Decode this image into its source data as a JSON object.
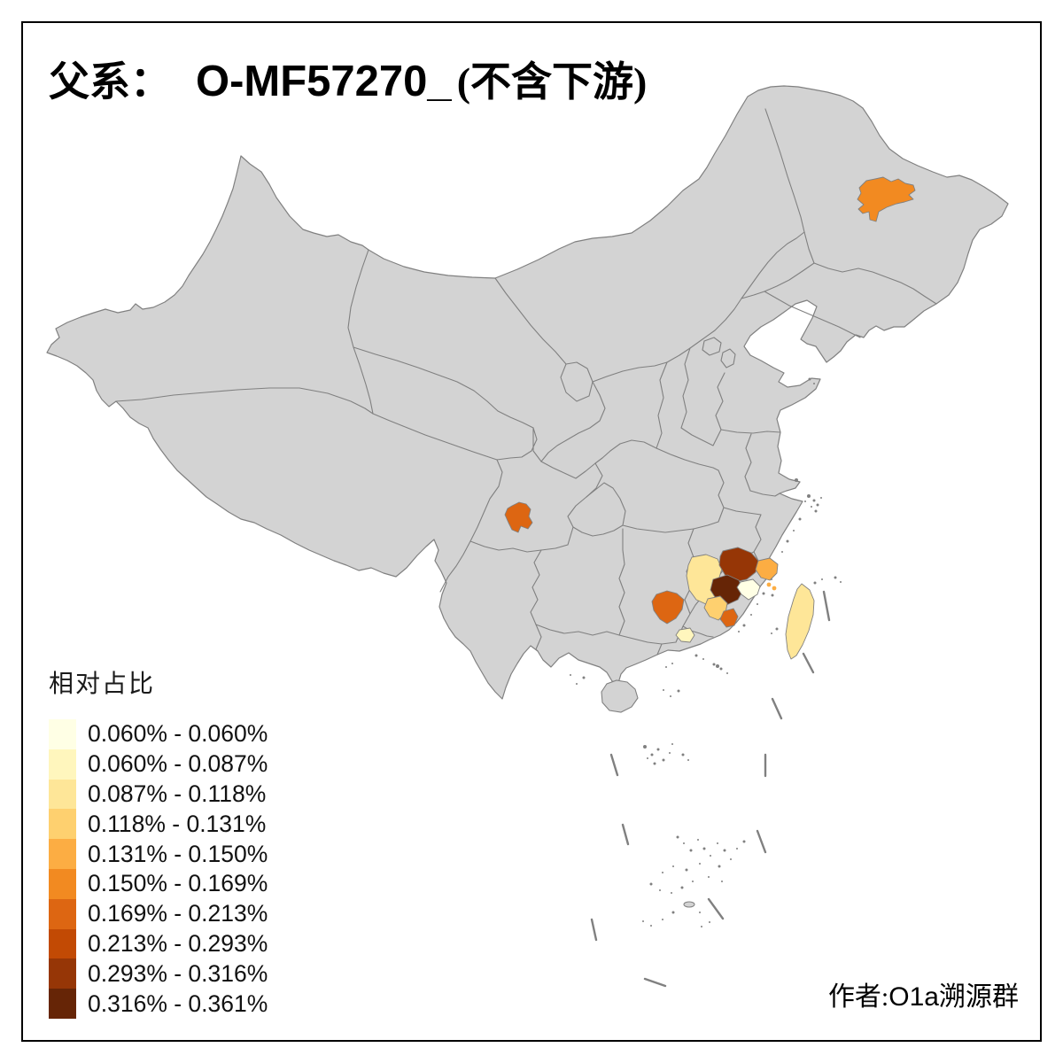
{
  "title": {
    "prefix": "父系：",
    "haplogroup": "O-MF57270_",
    "suffix": "(不含下游)"
  },
  "legend": {
    "title": "相对占比",
    "items": [
      {
        "label": "0.060% - 0.060%",
        "color": "#FFFFE5"
      },
      {
        "label": "0.060% - 0.087%",
        "color": "#FFF6BD"
      },
      {
        "label": "0.087% - 0.118%",
        "color": "#FEE698"
      },
      {
        "label": "0.118% - 0.131%",
        "color": "#FED06F"
      },
      {
        "label": "0.131% - 0.150%",
        "color": "#FCAD43"
      },
      {
        "label": "0.150% - 0.169%",
        "color": "#F28A21"
      },
      {
        "label": "0.169% - 0.213%",
        "color": "#DD6612"
      },
      {
        "label": "0.213% - 0.293%",
        "color": "#C24A04"
      },
      {
        "label": "0.293% - 0.316%",
        "color": "#963606"
      },
      {
        "label": "0.316% - 0.361%",
        "color": "#662506"
      }
    ]
  },
  "attribution": {
    "prefix": "作者:",
    "latin": "O1a",
    "suffix": "溯源群"
  },
  "map": {
    "land_fill": "#D3D3D3",
    "border_color": "#808080",
    "sea_fill": "#FFFFFF",
    "frame_color": "#000000",
    "colored_regions": [
      {
        "id": "harbin-area",
        "color_class": 6
      },
      {
        "id": "chengdu-area",
        "color_class": 7
      },
      {
        "id": "chenzhou-area",
        "color_class": 7
      },
      {
        "id": "fuzhou-jiangxi-area",
        "color_class": 3
      },
      {
        "id": "nanping-area",
        "color_class": 9
      },
      {
        "id": "sanming-area",
        "color_class": 10
      },
      {
        "id": "ningde-area",
        "color_class": 5
      },
      {
        "id": "fuzhou-fujian-area",
        "color_class": 1
      },
      {
        "id": "longyan-area",
        "color_class": 4
      },
      {
        "id": "xiamen-area",
        "color_class": 7
      },
      {
        "id": "chaozhou-area",
        "color_class": 2
      },
      {
        "id": "taiwan-island",
        "color_class": 3
      }
    ]
  }
}
